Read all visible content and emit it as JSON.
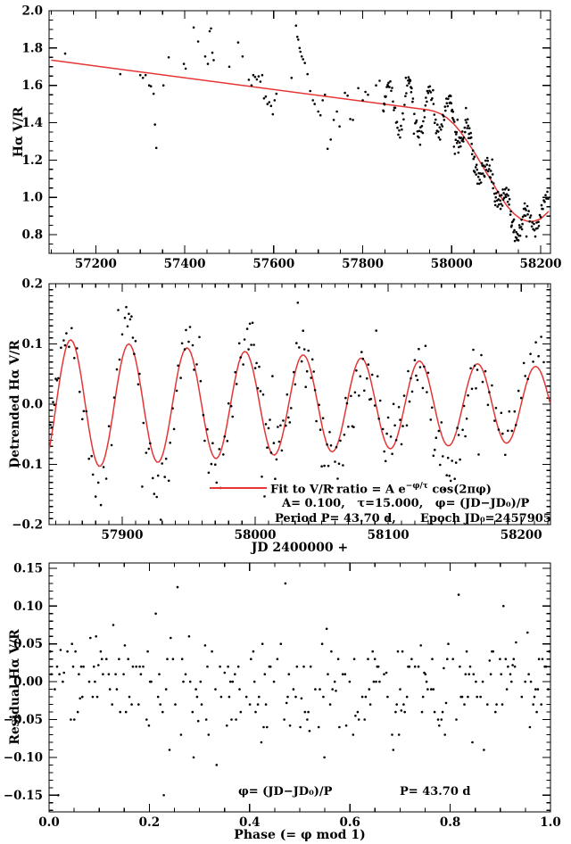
{
  "colors": {
    "background": "#ffffff",
    "points": "#000000",
    "fit": "#e53535",
    "frame": "#000000"
  },
  "fit_params": {
    "A": 0.1,
    "tau": 15.0,
    "P": 43.7,
    "JD0": 57905,
    "epoch_full": 2457905
  },
  "chart_data": [
    {
      "type": "scatter",
      "panel": "top",
      "ylabel": "Hα V/R",
      "xlabel": "",
      "xlim": [
        57095,
        58222
      ],
      "ylim": [
        0.7,
        2.0
      ],
      "xtick_vals": [
        57200,
        57400,
        57600,
        57800,
        58000,
        58200
      ],
      "xtick_labels": [
        "57200",
        "57400",
        "57600",
        "57800",
        "58000",
        "58200"
      ],
      "ytick_vals": [
        0.8,
        1.0,
        1.2,
        1.4,
        1.6,
        1.8,
        2.0
      ],
      "ytick_labels": [
        "0.8",
        "1.0",
        "1.2",
        "1.4",
        "1.6",
        "1.8",
        "2.0"
      ],
      "x_minor": 50,
      "y_minor": 0.05,
      "grid": false,
      "red_curve": "trend line (linear decline + steep drop after JD 57950)",
      "points_rule": "early_points raw; dense points = trend(jd)+fit(jd)+residual",
      "trend_line_points": [
        [
          57100,
          1.735
        ],
        [
          57948,
          1.468
        ],
        [
          57960,
          1.462
        ],
        [
          57975,
          1.448
        ],
        [
          57990,
          1.425
        ],
        [
          58005,
          1.392
        ],
        [
          58020,
          1.35
        ],
        [
          58035,
          1.3
        ],
        [
          58050,
          1.245
        ],
        [
          58065,
          1.185
        ],
        [
          58080,
          1.125
        ],
        [
          58095,
          1.065
        ],
        [
          58110,
          1.005
        ],
        [
          58125,
          0.952
        ],
        [
          58140,
          0.912
        ],
        [
          58155,
          0.885
        ],
        [
          58170,
          0.872
        ],
        [
          58185,
          0.872
        ],
        [
          58200,
          0.885
        ],
        [
          58218,
          0.925
        ]
      ],
      "early_points": [
        [
          57131,
          1.77
        ],
        [
          57255,
          1.66
        ],
        [
          57300,
          1.655
        ],
        [
          57306,
          1.64
        ],
        [
          57312,
          1.655
        ],
        [
          57320,
          1.6
        ],
        [
          57324,
          1.595
        ],
        [
          57330,
          1.555
        ],
        [
          57333,
          1.39
        ],
        [
          57336,
          1.265
        ],
        [
          57352,
          1.6
        ],
        [
          57364,
          1.75
        ],
        [
          57398,
          1.715
        ],
        [
          57402,
          1.69
        ],
        [
          57420,
          1.91
        ],
        [
          57430,
          1.835
        ],
        [
          57446,
          1.755
        ],
        [
          57452,
          1.715
        ],
        [
          57456,
          1.89
        ],
        [
          57459,
          1.905
        ],
        [
          57462,
          1.775
        ],
        [
          57465,
          1.735
        ],
        [
          57500,
          1.7
        ],
        [
          57520,
          1.83
        ],
        [
          57530,
          1.755
        ],
        [
          57544,
          1.63
        ],
        [
          57550,
          1.6
        ],
        [
          57554,
          1.655
        ],
        [
          57558,
          1.645
        ],
        [
          57562,
          1.632
        ],
        [
          57566,
          1.648
        ],
        [
          57570,
          1.62
        ],
        [
          57574,
          1.655
        ],
        [
          57578,
          1.53
        ],
        [
          57582,
          1.54
        ],
        [
          57586,
          1.5
        ],
        [
          57590,
          1.51
        ],
        [
          57594,
          1.49
        ],
        [
          57598,
          1.445
        ],
        [
          57602,
          1.52
        ],
        [
          57606,
          1.555
        ],
        [
          57640,
          1.64
        ],
        [
          57650,
          1.92
        ],
        [
          57653,
          1.86
        ],
        [
          57655,
          1.845
        ],
        [
          57658,
          1.8
        ],
        [
          57660,
          1.78
        ],
        [
          57663,
          1.755
        ],
        [
          57666,
          1.74
        ],
        [
          57670,
          1.72
        ],
        [
          57676,
          1.66
        ],
        [
          57682,
          1.57
        ],
        [
          57688,
          1.52
        ],
        [
          57692,
          1.5
        ],
        [
          57700,
          1.46
        ],
        [
          57705,
          1.44
        ],
        [
          57710,
          1.52
        ],
        [
          57715,
          1.55
        ],
        [
          57721,
          1.26
        ],
        [
          57728,
          1.31
        ],
        [
          57735,
          1.415
        ],
        [
          57742,
          1.46
        ],
        [
          57748,
          1.38
        ],
        [
          57760,
          1.56
        ],
        [
          57766,
          1.545
        ],
        [
          57772,
          1.42
        ],
        [
          57778,
          1.415
        ],
        [
          57790,
          1.585
        ],
        [
          57800,
          1.52
        ],
        [
          57806,
          1.565
        ],
        [
          57812,
          1.55
        ],
        [
          57830,
          1.6
        ],
        [
          57838,
          1.625
        ]
      ]
    },
    {
      "type": "scatter",
      "panel": "middle",
      "ylabel": "Detrended Hα V/R",
      "xlabel": "JD 2400000 +",
      "xlim": [
        57845,
        58222
      ],
      "ylim": [
        -0.2,
        0.2
      ],
      "xtick_vals": [
        57900,
        58000,
        58100,
        58200
      ],
      "xtick_labels": [
        "57900",
        "58000",
        "58100",
        "58200"
      ],
      "ytick_vals": [
        -0.2,
        -0.1,
        0,
        0.1,
        0.2
      ],
      "ytick_labels": [
        "−0.2",
        "−0.1",
        "0.0",
        "0.1",
        "0.2"
      ],
      "x_minor": 10,
      "y_minor": 0.01,
      "grid": false,
      "red_curve": "A e^(-phi/tau) cos(2 pi phi), phi=(JD-JD0)/P",
      "points_rule": "fit(jd)+residual",
      "legend": {
        "pre": "Fit to V/R ratio = A e",
        "sup": "−φ/τ",
        "post": " cos(2πφ)",
        "line2": "A= 0.100,   τ=15.000,   φ= (JD−JD₀)/P",
        "line3": "Period P= 43.70 d,      Epoch JD₀=2457905"
      }
    },
    {
      "type": "scatter",
      "panel": "bottom",
      "ylabel": "Residual Hα V/R",
      "xlabel": "Phase (= φ mod 1)",
      "xlim": [
        0,
        1
      ],
      "ylim": [
        -0.172,
        0.157
      ],
      "xtick_vals": [
        0,
        0.2,
        0.4,
        0.6,
        0.8,
        1.0
      ],
      "xtick_labels": [
        "0.0",
        "0.2",
        "0.4",
        "0.6",
        "0.8",
        "1.0"
      ],
      "ytick_vals": [
        -0.15,
        -0.1,
        -0.05,
        0,
        0.05,
        0.1,
        0.15
      ],
      "ytick_labels": [
        "−0.15",
        "−0.10",
        "−0.05",
        "0.00",
        "0.05",
        "0.10",
        "0.15"
      ],
      "x_minor": 0.05,
      "y_minor": 0.01,
      "grid": false,
      "points_rule": "x = ((jd-JD0)/P) mod 1 ; y = residual",
      "annotation_phi": "φ= (JD−JD₀)/P",
      "annotation_period": "P= 43.70 d"
    }
  ],
  "residuals": [
    [
      57846,
      0.03
    ],
    [
      57847,
      0.012
    ],
    [
      57848,
      0.04
    ],
    [
      57849,
      0.02
    ],
    [
      57850,
      0.048
    ],
    [
      57851,
      0.03
    ],
    [
      57852,
      0.018
    ],
    [
      57854,
      0.04
    ],
    [
      57856,
      0.028
    ],
    [
      57857,
      0.01
    ],
    [
      57858,
      0.022
    ],
    [
      57860,
      -0.01
    ],
    [
      57862,
      0.02
    ],
    [
      57864,
      -0.022
    ],
    [
      57866,
      0.01
    ],
    [
      57868,
      -0.04
    ],
    [
      57870,
      -0.058
    ],
    [
      57871,
      -0.03
    ],
    [
      57873,
      0.0
    ],
    [
      57875,
      -0.05
    ],
    [
      57877,
      -0.02
    ],
    [
      57878,
      -0.04
    ],
    [
      57880,
      -0.06
    ],
    [
      57882,
      -0.028
    ],
    [
      57884,
      -0.065
    ],
    [
      57886,
      -0.01
    ],
    [
      57888,
      -0.045
    ],
    [
      57890,
      0.02
    ],
    [
      57892,
      -0.038
    ],
    [
      57894,
      0.012
    ],
    [
      57896,
      0.03
    ],
    [
      57897,
      0.115
    ],
    [
      57898,
      0.02
    ],
    [
      57900,
      0.04
    ],
    [
      57902,
      0.052
    ],
    [
      57903,
      0.065
    ],
    [
      57904,
      0.03
    ],
    [
      57905,
      0.05
    ],
    [
      57906,
      0.042
    ],
    [
      57907,
      0.05
    ],
    [
      57908,
      0.02
    ],
    [
      57909,
      0.0
    ],
    [
      57910,
      0.03
    ],
    [
      57912,
      -0.02
    ],
    [
      57913,
      0.01
    ],
    [
      57915,
      -0.15
    ],
    [
      57916,
      -0.03
    ],
    [
      57918,
      -0.052
    ],
    [
      57920,
      -0.02
    ],
    [
      57921,
      0.0
    ],
    [
      57923,
      -0.04
    ],
    [
      57924,
      -0.06
    ],
    [
      57926,
      -0.058
    ],
    [
      57927,
      -0.022
    ],
    [
      57929,
      -0.1
    ],
    [
      57930,
      -0.012
    ],
    [
      57932,
      -0.05
    ],
    [
      57933,
      -0.03
    ],
    [
      57935,
      -0.09
    ],
    [
      57936,
      -0.04
    ],
    [
      57938,
      -0.01
    ],
    [
      57939,
      -0.058
    ],
    [
      57941,
      -0.02
    ],
    [
      57942,
      0.01
    ],
    [
      57944,
      -0.03
    ],
    [
      57945,
      0.02
    ],
    [
      57947,
      0.0
    ],
    [
      57948,
      0.03
    ],
    [
      57950,
      0.012
    ],
    [
      57951,
      0.04
    ],
    [
      57953,
      0.022
    ],
    [
      57954,
      -0.01
    ],
    [
      57956,
      0.02
    ],
    [
      57958,
      0.09
    ],
    [
      57959,
      0.03
    ],
    [
      57961,
      0.0
    ],
    [
      57962,
      -0.03
    ],
    [
      57964,
      0.012
    ],
    [
      57965,
      -0.05
    ],
    [
      57967,
      -0.02
    ],
    [
      57968,
      0.02
    ],
    [
      57970,
      -0.01
    ],
    [
      57971,
      -0.04
    ],
    [
      57973,
      0.01
    ],
    [
      57974,
      -0.06
    ],
    [
      57976,
      -0.02
    ],
    [
      57977,
      0.0
    ],
    [
      57979,
      -0.03
    ],
    [
      57980,
      0.02
    ],
    [
      57982,
      -0.01
    ],
    [
      57983,
      -0.04
    ],
    [
      57985,
      0.01
    ],
    [
      57986,
      -0.02
    ],
    [
      57988,
      0.03
    ],
    [
      57989,
      0.0
    ],
    [
      57991,
      -0.02
    ],
    [
      57992,
      0.02
    ],
    [
      57994,
      0.04
    ],
    [
      57995,
      0.01
    ],
    [
      57996,
      0.058
    ],
    [
      57997,
      0.03
    ],
    [
      57998,
      0.075
    ],
    [
      57999,
      0.048
    ],
    [
      58000,
      0.02
    ],
    [
      58001,
      0.04
    ],
    [
      58002,
      0.01
    ],
    [
      58003,
      0.058
    ],
    [
      58004,
      0.03
    ],
    [
      58005,
      -0.1
    ],
    [
      58006,
      0.048
    ],
    [
      58007,
      -0.11
    ],
    [
      58008,
      0.02
    ],
    [
      58009,
      -0.01
    ],
    [
      58010,
      0.03
    ],
    [
      58011,
      0.05
    ],
    [
      58012,
      0.0
    ],
    [
      58013,
      0.13
    ],
    [
      58014,
      0.02
    ],
    [
      58015,
      -0.04
    ],
    [
      58016,
      -0.01
    ],
    [
      58017,
      0.04
    ],
    [
      58018,
      0.01
    ],
    [
      58019,
      0.03
    ],
    [
      58020,
      -0.02
    ],
    [
      58021,
      0.02
    ],
    [
      58023,
      -0.01
    ],
    [
      58024,
      0.03
    ],
    [
      58025,
      -0.02
    ],
    [
      58026,
      -0.04
    ],
    [
      58027,
      -0.028
    ],
    [
      58029,
      0.01
    ],
    [
      58030,
      -0.02
    ],
    [
      58031,
      0.04
    ],
    [
      58032,
      0.1
    ],
    [
      58033,
      0.02
    ],
    [
      58035,
      -0.01
    ],
    [
      58036,
      0.04
    ],
    [
      58037,
      0.01
    ],
    [
      58038,
      -0.05
    ],
    [
      58039,
      -0.02
    ],
    [
      58040,
      0.02
    ],
    [
      58042,
      -0.01
    ],
    [
      58043,
      0.03
    ],
    [
      58044,
      0.02
    ],
    [
      58045,
      0.0
    ],
    [
      58046,
      -0.04
    ],
    [
      58048,
      0.01
    ],
    [
      58049,
      -0.02
    ],
    [
      58050,
      -0.07
    ],
    [
      58051,
      0.02
    ],
    [
      58052,
      -0.05
    ],
    [
      58054,
      0.0
    ],
    [
      58055,
      -0.03
    ],
    [
      58056,
      0.03
    ],
    [
      58057,
      0.01
    ],
    [
      58058,
      -0.06
    ],
    [
      58060,
      -0.02
    ],
    [
      58061,
      0.0
    ],
    [
      58062,
      -0.058
    ],
    [
      58063,
      -0.04
    ],
    [
      58064,
      -0.01
    ],
    [
      58066,
      -0.07
    ],
    [
      58067,
      -0.03
    ],
    [
      58068,
      0.02
    ],
    [
      58069,
      0.0
    ],
    [
      58070,
      -0.05
    ],
    [
      58072,
      -0.02
    ],
    [
      58073,
      -0.08
    ],
    [
      58074,
      -0.09
    ],
    [
      58075,
      -0.04
    ],
    [
      58076,
      -0.01
    ],
    [
      58078,
      -0.06
    ],
    [
      58079,
      -0.03
    ],
    [
      58080,
      0.01
    ],
    [
      58081,
      0.0
    ],
    [
      58082,
      -0.05
    ],
    [
      58084,
      -0.02
    ],
    [
      58085,
      0.01
    ],
    [
      58086,
      -0.04
    ],
    [
      58087,
      -0.03
    ],
    [
      58088,
      0.02
    ],
    [
      58090,
      -0.01
    ],
    [
      58091,
      0.125
    ],
    [
      58092,
      0.06
    ],
    [
      58093,
      0.0
    ],
    [
      58094,
      0.04
    ],
    [
      58096,
      0.01
    ],
    [
      58097,
      -0.02
    ],
    [
      58098,
      -0.03
    ],
    [
      58099,
      0.02
    ],
    [
      58100,
      0.05
    ],
    [
      58102,
      0.02
    ],
    [
      58103,
      -0.01
    ],
    [
      58104,
      0.07
    ],
    [
      58105,
      0.03
    ],
    [
      58106,
      0.0
    ],
    [
      58108,
      0.04
    ],
    [
      58109,
      0.01
    ],
    [
      58110,
      -0.04
    ],
    [
      58111,
      -0.02
    ],
    [
      58112,
      0.02
    ],
    [
      58114,
      -0.05
    ],
    [
      58115,
      0.03
    ],
    [
      58116,
      -0.03
    ],
    [
      58117,
      0.0
    ],
    [
      58118,
      -0.03
    ],
    [
      58120,
      0.01
    ],
    [
      58121,
      -0.02
    ],
    [
      58122,
      -0.03
    ],
    [
      58123,
      0.02
    ],
    [
      58124,
      -0.01
    ],
    [
      58126,
      -0.04
    ],
    [
      58127,
      0.0
    ],
    [
      58128,
      0.04
    ],
    [
      58129,
      -0.03
    ],
    [
      58130,
      0.01
    ],
    [
      58132,
      -0.05
    ],
    [
      58133,
      -0.02
    ],
    [
      58134,
      -0.09
    ],
    [
      58135,
      -0.07
    ],
    [
      58136,
      -0.04
    ],
    [
      58138,
      -0.01
    ],
    [
      58139,
      -0.058
    ],
    [
      58140,
      0.02
    ],
    [
      58141,
      -0.03
    ],
    [
      58142,
      -0.08
    ],
    [
      58144,
      -0.05
    ],
    [
      58145,
      -0.02
    ],
    [
      58146,
      -0.05
    ],
    [
      58147,
      -0.06
    ],
    [
      58148,
      -0.03
    ],
    [
      58150,
      -0.07
    ],
    [
      58151,
      -0.05
    ],
    [
      58152,
      0.0
    ],
    [
      58153,
      -0.02
    ],
    [
      58154,
      -0.07
    ],
    [
      58156,
      -0.04
    ],
    [
      58157,
      -0.01
    ],
    [
      58158,
      -0.07
    ],
    [
      58159,
      -0.05
    ],
    [
      58160,
      -0.02
    ],
    [
      58162,
      0.01
    ],
    [
      58163,
      -0.03
    ],
    [
      58164,
      0.03
    ],
    [
      58165,
      0.0
    ],
    [
      58166,
      -0.04
    ],
    [
      58167,
      -0.01
    ],
    [
      58168,
      -0.15
    ],
    [
      58170,
      0.02
    ],
    [
      58171,
      -0.02
    ],
    [
      58173,
      0.01
    ],
    [
      58175,
      -0.03
    ],
    [
      58176,
      0.0
    ],
    [
      58178,
      0.03
    ],
    [
      58180,
      -0.01
    ],
    [
      58181,
      0.02
    ],
    [
      58183,
      0.0
    ],
    [
      58185,
      0.04
    ],
    [
      58186,
      0.01
    ],
    [
      58188,
      -0.02
    ],
    [
      58190,
      0.02
    ],
    [
      58191,
      0.05
    ],
    [
      58193,
      0.01
    ],
    [
      58195,
      0.03
    ],
    [
      58196,
      0.0
    ],
    [
      58198,
      0.04
    ],
    [
      58200,
      0.01
    ],
    [
      58202,
      0.05
    ],
    [
      58203,
      0.02
    ],
    [
      58205,
      0.0
    ],
    [
      58207,
      0.03
    ],
    [
      58209,
      0.01
    ],
    [
      58211,
      0.04
    ],
    [
      58213,
      0.02
    ],
    [
      58215,
      0.06
    ],
    [
      58217,
      0.03
    ]
  ]
}
